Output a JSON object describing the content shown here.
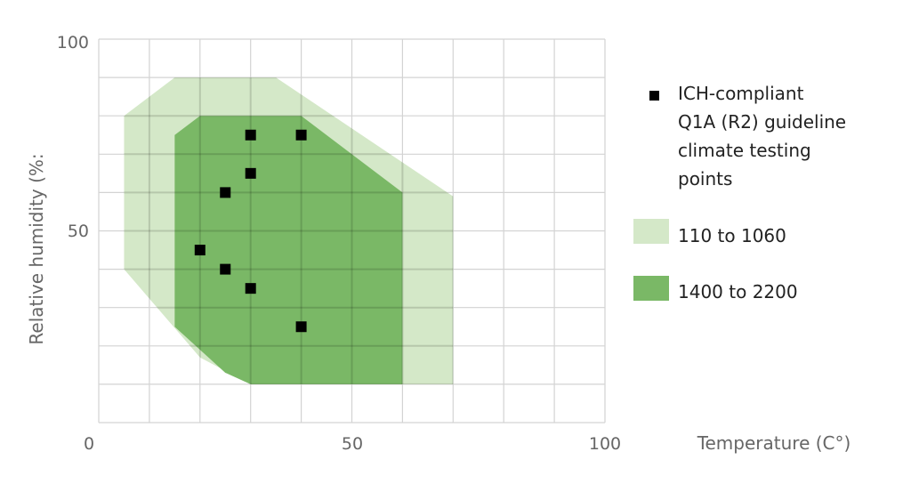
{
  "chart_data": {
    "type": "scatter",
    "xlabel": "Temperature (C°)",
    "ylabel": "Relative humidity (%:",
    "xlim": [
      0,
      100
    ],
    "ylim": [
      0,
      100
    ],
    "x_ticks": [
      0,
      50,
      100
    ],
    "y_ticks": [
      100,
      50
    ],
    "grid": true,
    "grid_step": 10,
    "legend_position": "right",
    "regions": [
      {
        "name": "110 to 1060",
        "color": "#d4e8c8",
        "polygon": [
          [
            5,
            80
          ],
          [
            15,
            90
          ],
          [
            35,
            90
          ],
          [
            70,
            59
          ],
          [
            70,
            10
          ],
          [
            30,
            10
          ],
          [
            20,
            17
          ],
          [
            5,
            40
          ]
        ]
      },
      {
        "name": "1400 to 2200",
        "color": "#7ab866",
        "polygon": [
          [
            15,
            75
          ],
          [
            20,
            80
          ],
          [
            40,
            80
          ],
          [
            60,
            60
          ],
          [
            60,
            10
          ],
          [
            30,
            10
          ],
          [
            25,
            13
          ],
          [
            15,
            25
          ]
        ]
      }
    ],
    "series": [
      {
        "name": "ICH-compliant Q1A (R2) guideline climate testing points",
        "color": "#000000",
        "points": [
          [
            30,
            75
          ],
          [
            40,
            75
          ],
          [
            30,
            65
          ],
          [
            25,
            60
          ],
          [
            20,
            45
          ],
          [
            25,
            40
          ],
          [
            30,
            35
          ],
          [
            40,
            25
          ]
        ]
      }
    ],
    "legend": {
      "points_lines": [
        "ICH-compliant",
        "Q1A (R2) guideline",
        "climate testing",
        "points"
      ],
      "region1_label": "110 to 1060",
      "region2_label": "1400 to 2200"
    },
    "tick_labels": {
      "x0": "0",
      "x50": "50",
      "x100": "100",
      "y100": "100",
      "y50": "50"
    }
  }
}
